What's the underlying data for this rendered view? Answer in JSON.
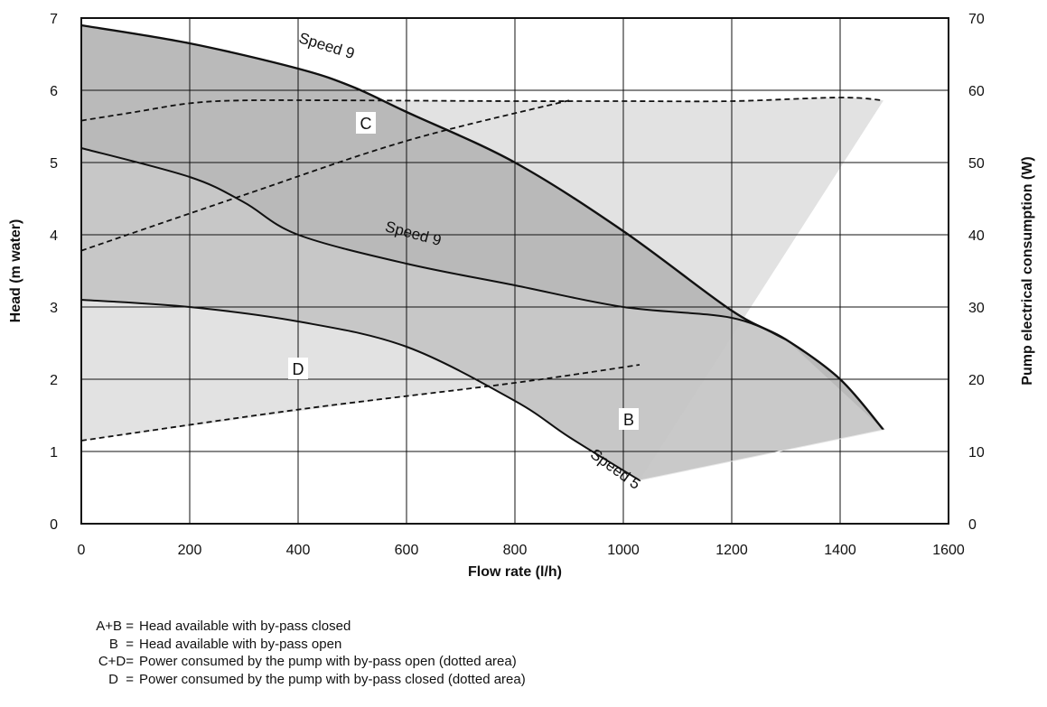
{
  "chart_data": {
    "type": "area",
    "xlabel": "Flow rate (l/h)",
    "ylabel": "Head (m water)",
    "y2label": "Pump electrical consumption (W)",
    "xlim": [
      0,
      1600
    ],
    "ylim": [
      0,
      7
    ],
    "y2lim": [
      0,
      70
    ],
    "x_ticks": [
      0,
      200,
      400,
      600,
      800,
      1000,
      1200,
      1400,
      1600
    ],
    "y_ticks": [
      0,
      1,
      2,
      3,
      4,
      5,
      6,
      7
    ],
    "y2_ticks": [
      0,
      10,
      20,
      30,
      40,
      50,
      60,
      70
    ],
    "grid": true,
    "head_curves": [
      {
        "name": "Speed 9",
        "axis": "head",
        "x": [
          0,
          200,
          400,
          500,
          600,
          800,
          1000,
          1200,
          1300,
          1400,
          1480
        ],
        "y": [
          6.9,
          6.65,
          6.3,
          6.05,
          5.7,
          5.0,
          4.05,
          2.95,
          2.55,
          2.0,
          1.3
        ]
      },
      {
        "name": "Speed 9",
        "axis": "head",
        "x": [
          0,
          200,
          300,
          400,
          600,
          800,
          1000,
          1200,
          1300
        ],
        "y": [
          5.2,
          4.8,
          4.45,
          4.0,
          3.6,
          3.3,
          3.0,
          2.85,
          2.55
        ]
      },
      {
        "name": "Speed 5",
        "axis": "head",
        "x": [
          0,
          200,
          400,
          600,
          800,
          900,
          1030
        ],
        "y": [
          3.1,
          3.0,
          2.8,
          2.45,
          1.7,
          1.2,
          0.6
        ]
      }
    ],
    "power_curves": [
      {
        "axis": "power",
        "style": "dashed",
        "x": [
          0,
          100,
          200,
          300,
          500,
          800,
          1000,
          1200,
          1400,
          1480
        ],
        "y": [
          55.8,
          57,
          58.2,
          58.6,
          58.6,
          58.5,
          58.5,
          58.5,
          59,
          58.6
        ]
      },
      {
        "axis": "power",
        "style": "dashed",
        "x": [
          0,
          300,
          600,
          900
        ],
        "y": [
          37.8,
          45.5,
          53,
          58.6
        ]
      },
      {
        "axis": "power",
        "style": "dashed",
        "x": [
          0,
          400,
          800,
          1030
        ],
        "y": [
          11.5,
          15.8,
          19.5,
          22
        ]
      }
    ],
    "regions": [
      {
        "label": "B",
        "x": 1010,
        "y": 1.45
      },
      {
        "label": "C",
        "x": 525,
        "y": 5.55
      },
      {
        "label": "D",
        "x": 400,
        "y": 2.15
      }
    ],
    "curve_labels": [
      {
        "text": "Speed 9",
        "x": 450,
        "y": 6.55,
        "angle": 17
      },
      {
        "text": "Speed 9",
        "x": 610,
        "y": 3.95,
        "angle": 15
      },
      {
        "text": "Speed 5",
        "x": 980,
        "y": 0.7,
        "angle": 36
      }
    ],
    "legend": [
      {
        "key": "A+B =",
        "text": "Head available with by-pass closed"
      },
      {
        "key": "B  =",
        "text": "Head available with by-pass open"
      },
      {
        "key": "C+D=",
        "text": "Power consumed by the pump with by-pass open (dotted area)"
      },
      {
        "key": "D  =",
        "text": "Power consumed by the pump with by-pass closed (dotted area)"
      }
    ],
    "colors": {
      "light_fill": "#e2e2e2",
      "mid_fill": "#c4c4c4",
      "dark_fill": "#adadad",
      "line": "#111111",
      "grid": "#111111"
    }
  }
}
